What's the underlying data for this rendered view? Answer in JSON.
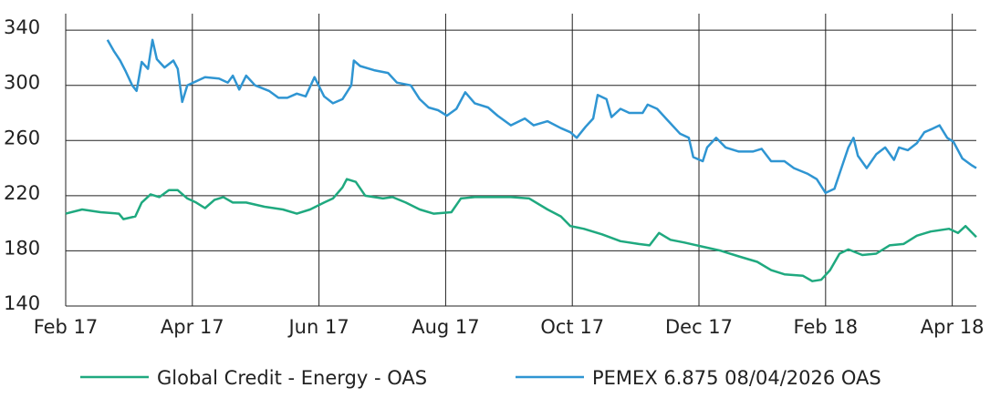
{
  "chart_data": {
    "type": "line",
    "xlim": [
      0,
      14.38
    ],
    "ylim": [
      140,
      352
    ],
    "xticks": [
      {
        "value": 0,
        "label": "Feb 17"
      },
      {
        "value": 2,
        "label": "Apr 17"
      },
      {
        "value": 4,
        "label": "Jun 17"
      },
      {
        "value": 6,
        "label": "Aug 17"
      },
      {
        "value": 8,
        "label": "Oct 17"
      },
      {
        "value": 10,
        "label": "Dec 17"
      },
      {
        "value": 12,
        "label": "Feb 18"
      },
      {
        "value": 14,
        "label": "Apr 18"
      }
    ],
    "yticks": [
      140,
      180,
      220,
      260,
      300,
      340
    ],
    "grid": true,
    "legend": "bottom",
    "series": [
      {
        "name": "Global Credit - Energy - OAS",
        "color": "#1fa97f",
        "x": [
          0,
          0.26,
          0.55,
          0.84,
          0.91,
          1.1,
          1.2,
          1.34,
          1.48,
          1.63,
          1.77,
          1.92,
          2.06,
          2.2,
          2.35,
          2.49,
          2.64,
          2.85,
          3.14,
          3.43,
          3.65,
          3.86,
          4.08,
          4.22,
          4.37,
          4.44,
          4.58,
          4.73,
          5.01,
          5.16,
          5.37,
          5.59,
          5.81,
          6.09,
          6.24,
          6.46,
          6.74,
          7.03,
          7.32,
          7.61,
          7.82,
          7.97,
          8.18,
          8.47,
          8.76,
          9.05,
          9.22,
          9.37,
          9.55,
          9.77,
          10.06,
          10.35,
          10.63,
          10.92,
          11.14,
          11.35,
          11.64,
          11.79,
          11.93,
          12.07,
          12.22,
          12.36,
          12.58,
          12.8,
          13.01,
          13.23,
          13.44,
          13.66,
          13.95,
          14.09,
          14.21,
          14.38
        ],
        "values": [
          207,
          210,
          208,
          207,
          203,
          205,
          215,
          221,
          219,
          224,
          224,
          218,
          215,
          211,
          217,
          219,
          215,
          215,
          212,
          210,
          207,
          210,
          215,
          218,
          226,
          232,
          230,
          220,
          218,
          219,
          215,
          210,
          207,
          208,
          218,
          219,
          219,
          219,
          218,
          210,
          205,
          198,
          196,
          192,
          187,
          185,
          184,
          193,
          188,
          186,
          183,
          180,
          176,
          172,
          166,
          163,
          162,
          158,
          159,
          166,
          178,
          181,
          177,
          178,
          184,
          185,
          191,
          194,
          196,
          193,
          198,
          190
        ]
      },
      {
        "name": "PEMEX 6.875 08/04/2026 OAS",
        "color": "#2f95d2",
        "x": [
          0.66,
          0.76,
          0.86,
          0.95,
          1.05,
          1.12,
          1.2,
          1.3,
          1.37,
          1.44,
          1.56,
          1.7,
          1.77,
          1.84,
          1.92,
          2.06,
          2.2,
          2.42,
          2.56,
          2.64,
          2.74,
          2.85,
          2.99,
          3.21,
          3.36,
          3.5,
          3.65,
          3.79,
          3.93,
          4.08,
          4.22,
          4.37,
          4.51,
          4.55,
          4.65,
          4.87,
          5.09,
          5.23,
          5.45,
          5.59,
          5.73,
          5.88,
          6.02,
          6.17,
          6.31,
          6.46,
          6.67,
          6.82,
          7.03,
          7.25,
          7.39,
          7.61,
          7.82,
          7.97,
          8.07,
          8.21,
          8.33,
          8.4,
          8.54,
          8.62,
          8.76,
          8.9,
          9.11,
          9.19,
          9.34,
          9.48,
          9.7,
          9.84,
          9.91,
          10.06,
          10.13,
          10.27,
          10.42,
          10.63,
          10.85,
          10.99,
          11.14,
          11.35,
          11.5,
          11.71,
          11.86,
          12.0,
          12.14,
          12.22,
          12.36,
          12.44,
          12.51,
          12.65,
          12.8,
          12.94,
          13.08,
          13.16,
          13.3,
          13.44,
          13.56,
          13.66,
          13.8,
          13.92,
          14.02,
          14.16,
          14.31,
          14.38
        ],
        "values": [
          333,
          325,
          318,
          310,
          300,
          296,
          317,
          312,
          333,
          319,
          313,
          318,
          312,
          288,
          300,
          303,
          306,
          305,
          302,
          307,
          297,
          307,
          300,
          296,
          291,
          291,
          294,
          292,
          306,
          292,
          287,
          290,
          300,
          318,
          314,
          311,
          309,
          302,
          300,
          290,
          284,
          282,
          278,
          283,
          295,
          287,
          284,
          278,
          271,
          276,
          271,
          274,
          269,
          266,
          262,
          270,
          276,
          293,
          290,
          277,
          283,
          280,
          280,
          286,
          283,
          276,
          265,
          262,
          248,
          245,
          255,
          262,
          255,
          252,
          252,
          254,
          245,
          245,
          240,
          236,
          232,
          222,
          225,
          236,
          255,
          262,
          249,
          240,
          250,
          255,
          246,
          255,
          253,
          258,
          266,
          268,
          271,
          262,
          259,
          247,
          242,
          240
        ]
      }
    ]
  }
}
